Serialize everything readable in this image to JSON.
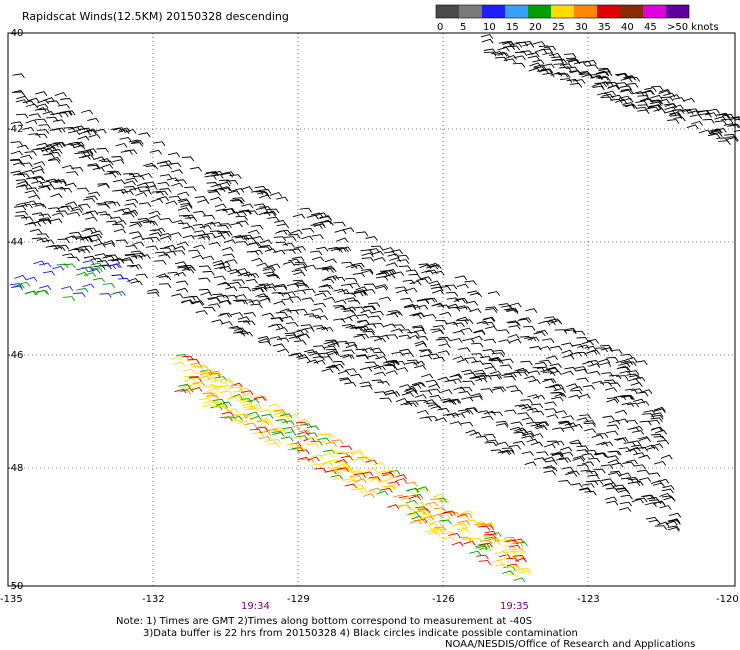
{
  "title": "Rapidscat Winds(12.5KM) 20150328 descending",
  "legend": {
    "labels": [
      "0",
      "5",
      "10",
      "15",
      "20",
      "25",
      "30",
      "35",
      "40",
      "45",
      ">50 knots"
    ],
    "colors": [
      "#4a4a4a",
      "#7a7a7a",
      "#1e1eff",
      "#3aa0ff",
      "#00a000",
      "#ffdd00",
      "#ff8800",
      "#e00000",
      "#8a2a00",
      "#e000e0",
      "#6000a0"
    ]
  },
  "axes": {
    "lon_ticks": [
      "-135",
      "-132",
      "-129",
      "-126",
      "-123",
      "-120"
    ],
    "lat_ticks": [
      "-40",
      "-42",
      "-44",
      "-46",
      "-48",
      "-50"
    ]
  },
  "times": [
    "19:34",
    "19:35"
  ],
  "notes": [
    "Note: 1) Times are GMT 2)Times along bottom correspond to measurement at -40S",
    "3)Data buffer is 22 hrs from 20150328 4) Black circles indicate possible contamination",
    "NOAA/NESDIS/Office of Research and Applications"
  ]
}
